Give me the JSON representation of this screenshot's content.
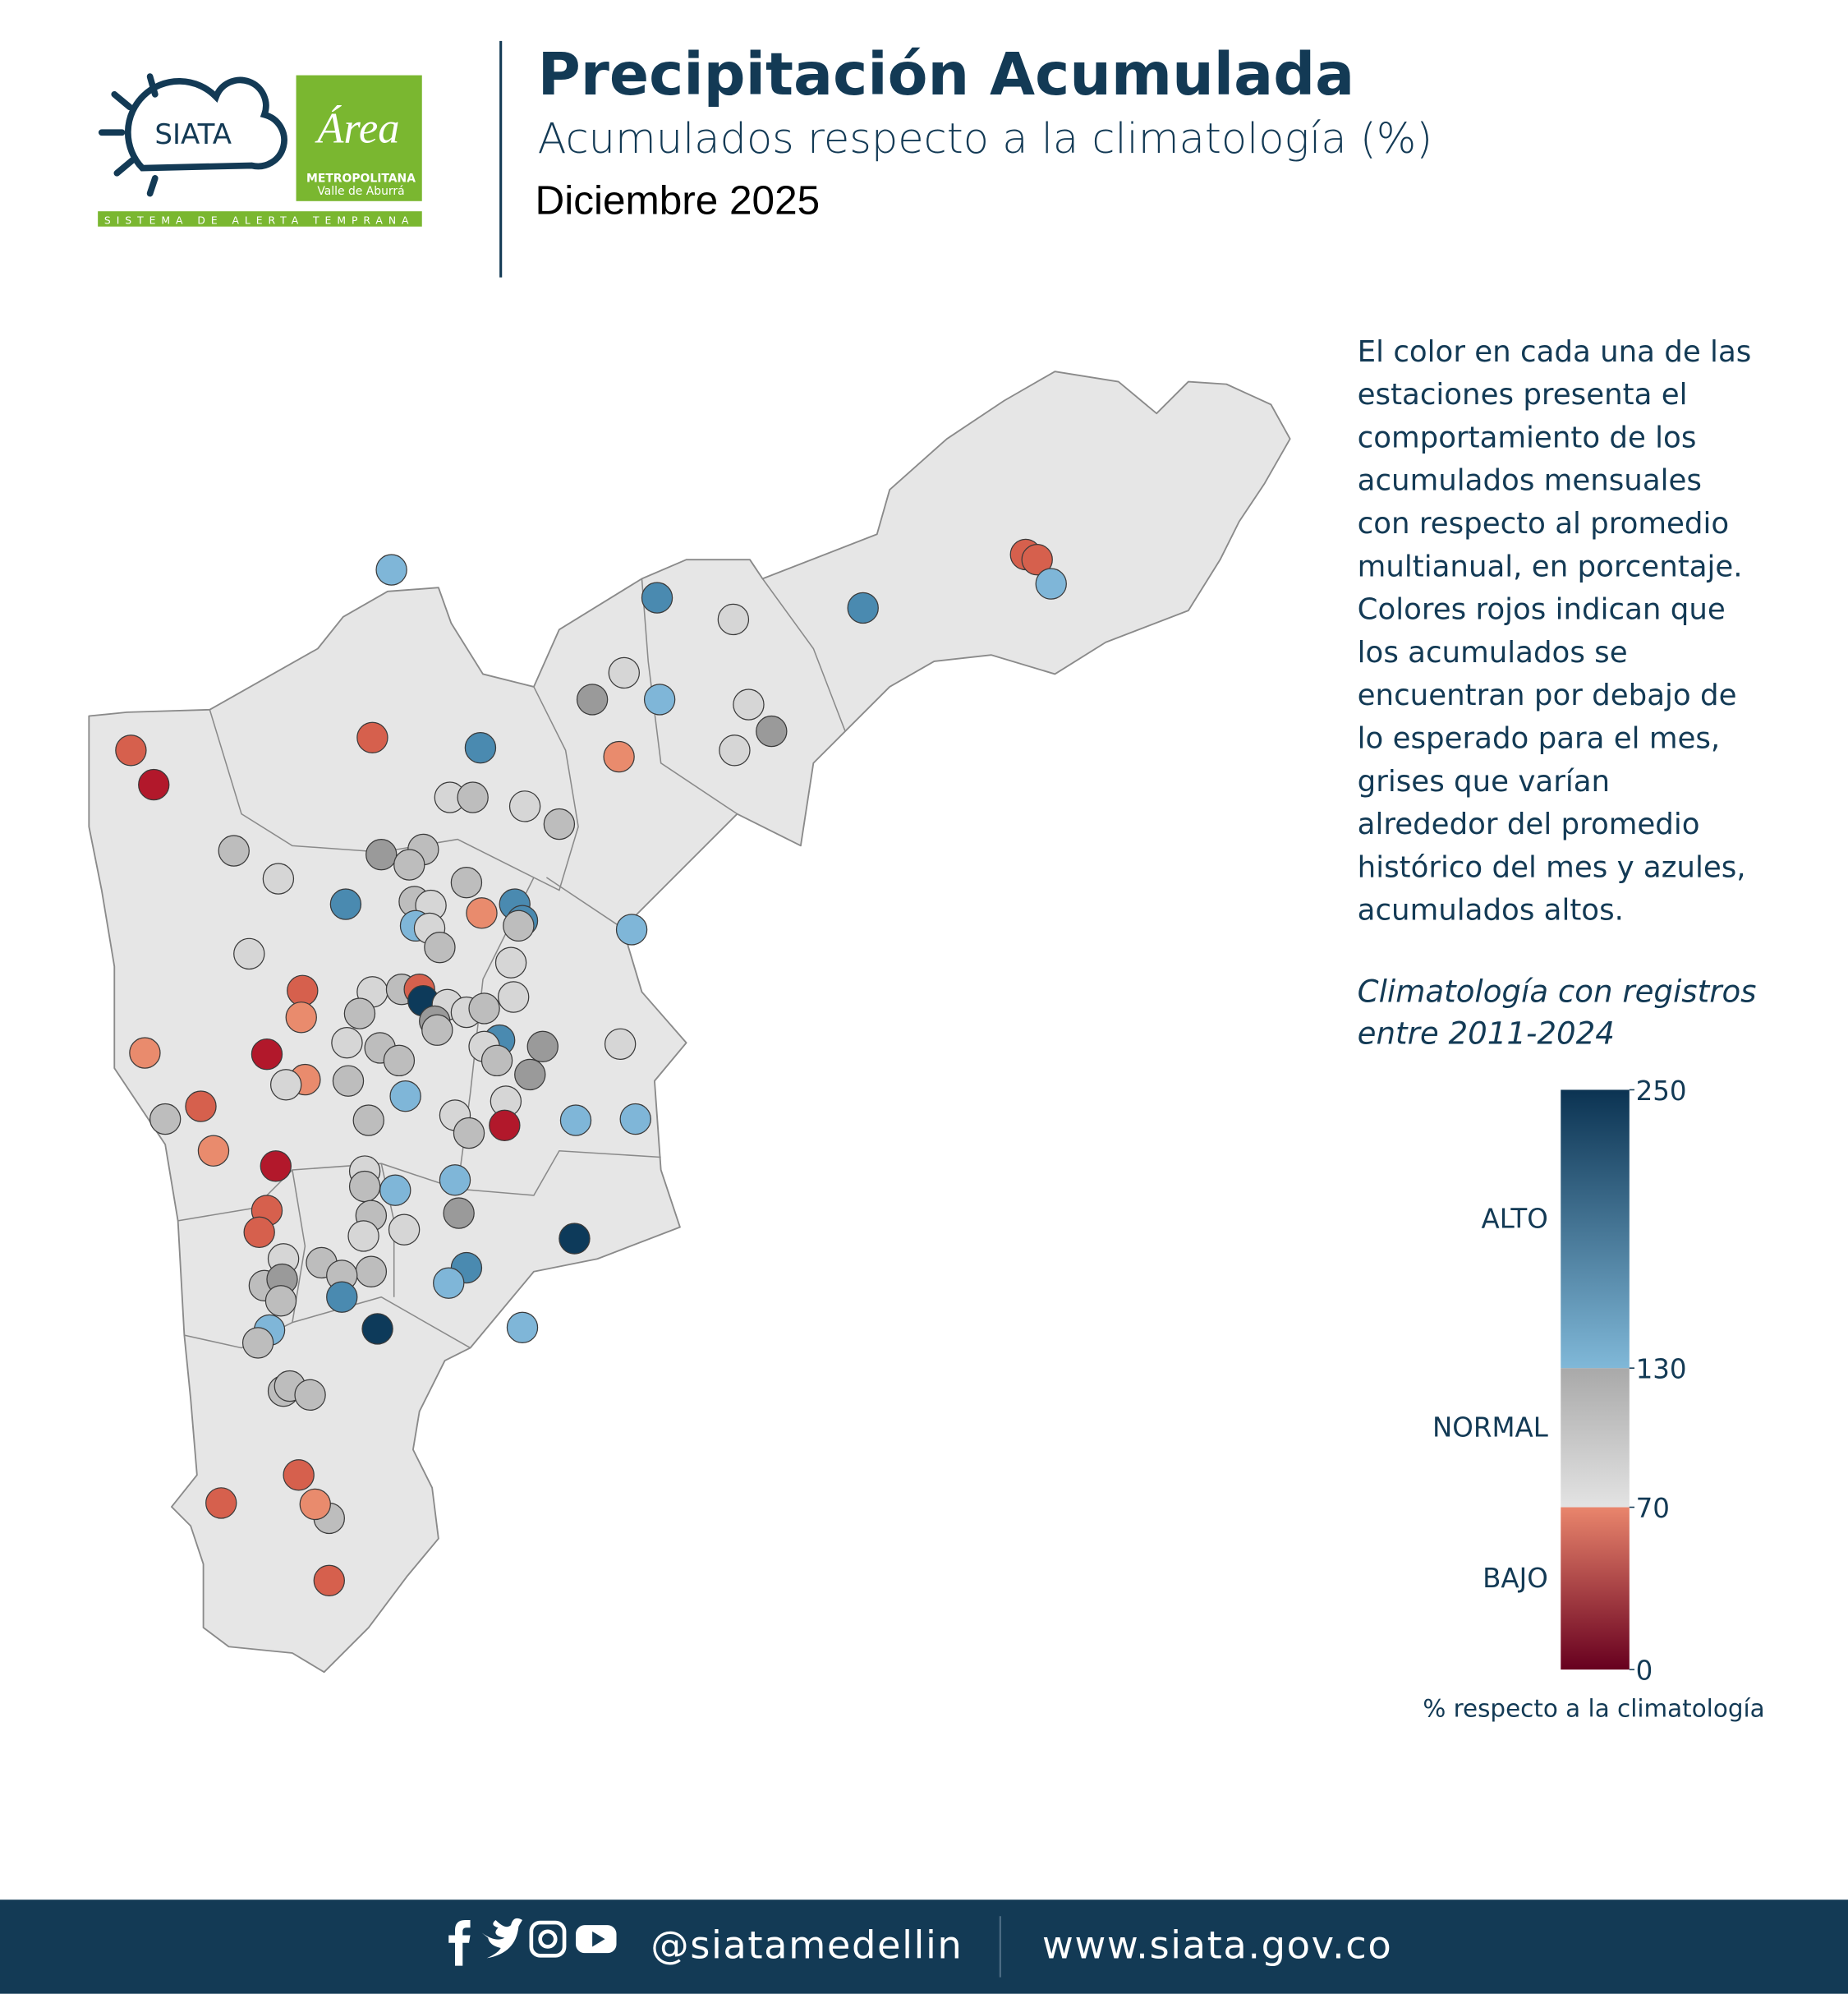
{
  "header": {
    "logo": {
      "siata": "SIATA",
      "tagline": "SISTEMA DE ALERTA TEMPRANA",
      "area": "Área",
      "metro": "METROPOLITANA",
      "valle": "Valle de Aburrá"
    },
    "title": "Precipitación Acumulada",
    "subtitle": "Acumulados respecto a la climatología (%)",
    "date": "Diciembre 2025"
  },
  "description": [
    "El color en cada una de las",
    "estaciones presenta el",
    "comportamiento de los",
    "acumulados mensuales",
    "con respecto al promedio",
    "multianual, en porcentaje.",
    "Colores rojos indican que",
    "los acumulados se",
    "encuentran por debajo de",
    "lo esperado para el mes,",
    "grises que varían",
    "alrededor del promedio",
    "histórico del mes y azules,",
    "acumulados altos."
  ],
  "climatology_note": [
    "Climatología con registros",
    "entre 2011-2024"
  ],
  "legend": {
    "lim": [
      0,
      250
    ],
    "ticks": [
      0,
      70,
      130,
      250
    ],
    "bands": [
      {
        "label": "BAJO",
        "colors": [
          "#67001f",
          "#e9856c"
        ]
      },
      {
        "label": "NORMAL",
        "colors": [
          "#e3e3e3",
          "#a9a9a9"
        ]
      },
      {
        "label": "ALTO",
        "colors": [
          "#80b8d8",
          "#0b3352"
        ]
      }
    ],
    "caption": "% respecto a la climatología"
  },
  "footer": {
    "handle": "@siatamedellin",
    "url": "www.siata.gov.co"
  }
}
